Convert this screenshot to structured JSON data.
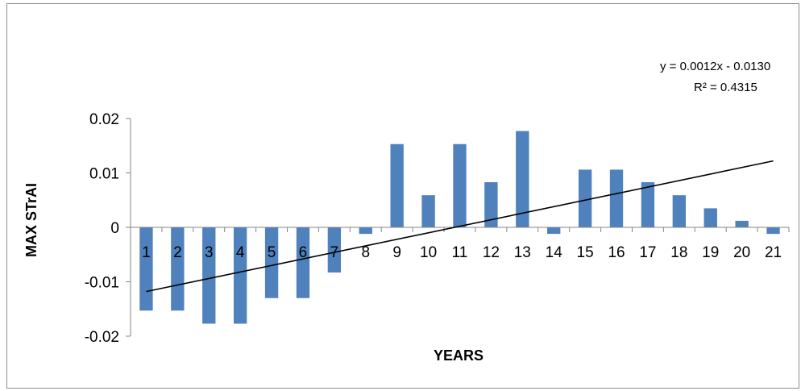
{
  "chart_data": {
    "type": "bar",
    "categories": [
      "1",
      "2",
      "3",
      "4",
      "5",
      "6",
      "7",
      "8",
      "9",
      "10",
      "11",
      "12",
      "13",
      "14",
      "15",
      "16",
      "17",
      "18",
      "19",
      "20",
      "21"
    ],
    "values": [
      -0.0153,
      -0.0153,
      -0.0177,
      -0.0177,
      -0.013,
      -0.013,
      -0.0083,
      -0.0012,
      0.0153,
      0.0059,
      0.0153,
      0.0083,
      0.0177,
      -0.0012,
      0.0106,
      0.0106,
      0.0083,
      0.0059,
      0.0035,
      0.0012,
      -0.0012
    ],
    "title": "",
    "xlabel": "YEARS",
    "ylabel": "MAX STrAI",
    "ylim": [
      -0.02,
      0.02
    ],
    "yticks": [
      "0.02",
      "0.01",
      "0",
      "-0.01",
      "-0.02"
    ],
    "ytick_values": [
      0.02,
      0.01,
      0,
      -0.01,
      -0.02
    ],
    "grid": false,
    "bar_color": "#4f81bd",
    "trendline": {
      "type": "linear",
      "slope": 0.0012,
      "intercept": -0.013,
      "equation": "y = 0.0012x - 0.0130",
      "r_squared": "R² = 0.4315",
      "color": "#000000"
    }
  }
}
